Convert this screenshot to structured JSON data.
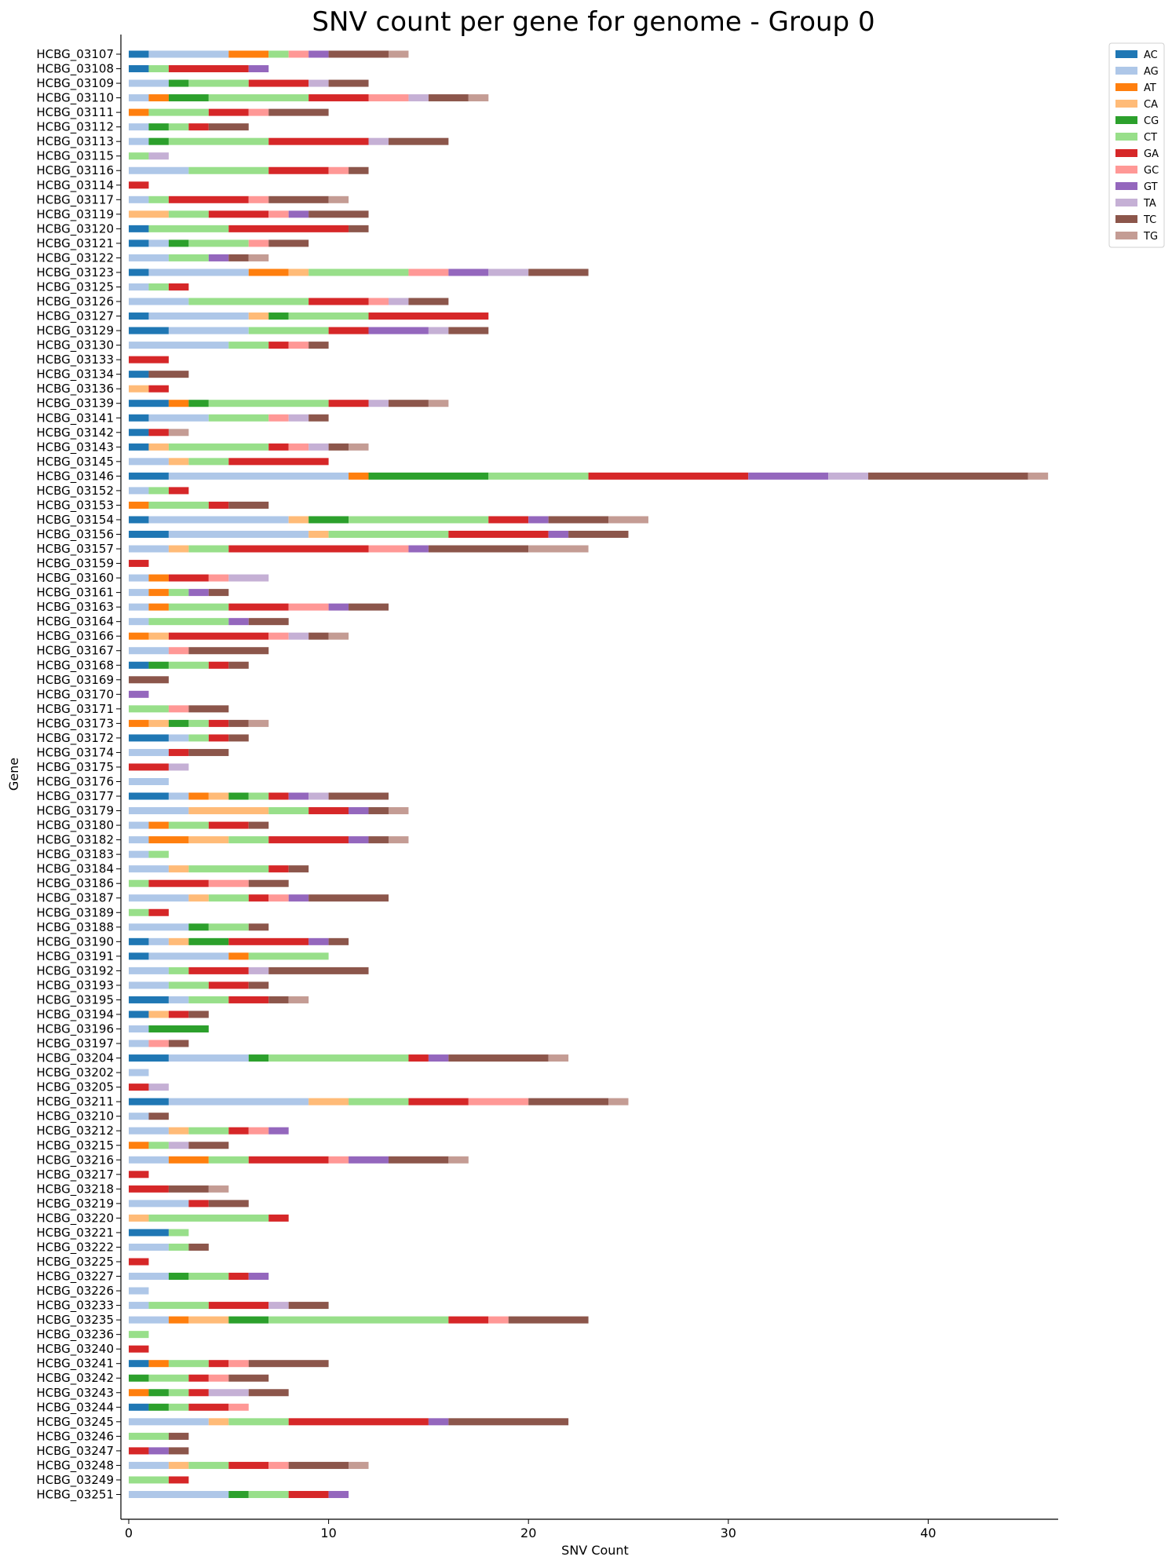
{
  "chart_data": {
    "type": "bar",
    "orientation": "horizontal",
    "stacked": true,
    "title": "SNV count per gene for genome - Group 0",
    "xlabel": "SNV Count",
    "ylabel": "Gene",
    "xlim": [
      0,
      46
    ],
    "xticks": [
      0,
      10,
      20,
      30,
      40
    ],
    "grid": false,
    "legend_position": "top-right",
    "series_names": [
      "AC",
      "AG",
      "AT",
      "CA",
      "CG",
      "CT",
      "GA",
      "GC",
      "GT",
      "TA",
      "TC",
      "TG"
    ],
    "colors": {
      "AC": "#1f77b4",
      "AG": "#aec7e8",
      "AT": "#ff7f0e",
      "CA": "#ffbb78",
      "CG": "#2ca02c",
      "CT": "#98df8a",
      "GA": "#d62728",
      "GC": "#ff9896",
      "GT": "#9467bd",
      "TA": "#c5b0d5",
      "TC": "#8c564b",
      "TG": "#c49c94"
    },
    "genes": [
      {
        "gene": "HCBG_03107",
        "counts": {
          "AC": 1,
          "AG": 4,
          "AT": 2,
          "CT": 1,
          "GC": 1,
          "GT": 1,
          "TC": 3,
          "TG": 1
        }
      },
      {
        "gene": "HCBG_03108",
        "counts": {
          "AC": 1,
          "CT": 1,
          "GA": 4,
          "GT": 1
        }
      },
      {
        "gene": "HCBG_03109",
        "counts": {
          "AG": 2,
          "CG": 1,
          "CT": 3,
          "GA": 3,
          "TA": 1,
          "TC": 2
        }
      },
      {
        "gene": "HCBG_03110",
        "counts": {
          "AG": 1,
          "AT": 1,
          "CG": 2,
          "CT": 5,
          "GA": 3,
          "GC": 2,
          "TA": 1,
          "TC": 2,
          "TG": 1
        }
      },
      {
        "gene": "HCBG_03111",
        "counts": {
          "AT": 1,
          "CT": 3,
          "GA": 2,
          "GC": 1,
          "TC": 3
        }
      },
      {
        "gene": "HCBG_03112",
        "counts": {
          "AG": 1,
          "CG": 1,
          "CT": 1,
          "GA": 1,
          "TC": 2
        }
      },
      {
        "gene": "HCBG_03113",
        "counts": {
          "AG": 1,
          "CG": 1,
          "CT": 5,
          "GA": 5,
          "TA": 1,
          "TC": 3
        }
      },
      {
        "gene": "HCBG_03115",
        "counts": {
          "CT": 1,
          "TA": 1
        }
      },
      {
        "gene": "HCBG_03116",
        "counts": {
          "AG": 3,
          "CT": 4,
          "GA": 3,
          "GC": 1,
          "TC": 1
        }
      },
      {
        "gene": "HCBG_03114",
        "counts": {
          "GA": 1
        }
      },
      {
        "gene": "HCBG_03117",
        "counts": {
          "AG": 1,
          "CT": 1,
          "GA": 4,
          "GC": 1,
          "TC": 3,
          "TG": 1
        }
      },
      {
        "gene": "HCBG_03119",
        "counts": {
          "CA": 2,
          "CT": 2,
          "GA": 3,
          "GC": 1,
          "GT": 1,
          "TC": 3
        }
      },
      {
        "gene": "HCBG_03120",
        "counts": {
          "AC": 1,
          "CT": 4,
          "GA": 6,
          "TC": 1
        }
      },
      {
        "gene": "HCBG_03121",
        "counts": {
          "AC": 1,
          "AG": 1,
          "CG": 1,
          "CT": 3,
          "GC": 1,
          "TC": 2
        }
      },
      {
        "gene": "HCBG_03122",
        "counts": {
          "AG": 2,
          "CT": 2,
          "GT": 1,
          "TC": 1,
          "TG": 1
        }
      },
      {
        "gene": "HCBG_03123",
        "counts": {
          "AC": 1,
          "AG": 5,
          "AT": 2,
          "CA": 1,
          "CT": 5,
          "GC": 2,
          "GT": 2,
          "TA": 2,
          "TC": 3
        }
      },
      {
        "gene": "HCBG_03125",
        "counts": {
          "AG": 1,
          "CT": 1,
          "GA": 1
        }
      },
      {
        "gene": "HCBG_03126",
        "counts": {
          "AG": 3,
          "CT": 6,
          "GA": 3,
          "GC": 1,
          "TA": 1,
          "TC": 2
        }
      },
      {
        "gene": "HCBG_03127",
        "counts": {
          "AC": 1,
          "AG": 5,
          "CA": 1,
          "CG": 1,
          "CT": 4,
          "GA": 6
        }
      },
      {
        "gene": "HCBG_03129",
        "counts": {
          "AC": 2,
          "AG": 4,
          "CT": 4,
          "GA": 2,
          "GT": 3,
          "TA": 1,
          "TC": 2
        }
      },
      {
        "gene": "HCBG_03130",
        "counts": {
          "AG": 5,
          "CT": 2,
          "GA": 1,
          "GC": 1,
          "TC": 1
        }
      },
      {
        "gene": "HCBG_03133",
        "counts": {
          "GA": 2
        }
      },
      {
        "gene": "HCBG_03134",
        "counts": {
          "AC": 1,
          "TC": 2
        }
      },
      {
        "gene": "HCBG_03136",
        "counts": {
          "CA": 1,
          "GA": 1
        }
      },
      {
        "gene": "HCBG_03139",
        "counts": {
          "AC": 2,
          "AT": 1,
          "CG": 1,
          "CT": 6,
          "GA": 2,
          "TA": 1,
          "TC": 2,
          "TG": 1
        }
      },
      {
        "gene": "HCBG_03141",
        "counts": {
          "AC": 1,
          "AG": 3,
          "CT": 3,
          "GC": 1,
          "TA": 1,
          "TC": 1
        }
      },
      {
        "gene": "HCBG_03142",
        "counts": {
          "AC": 1,
          "GA": 1,
          "TG": 1
        }
      },
      {
        "gene": "HCBG_03143",
        "counts": {
          "AC": 1,
          "CA": 1,
          "CT": 5,
          "GA": 1,
          "GC": 1,
          "TA": 1,
          "TC": 1,
          "TG": 1
        }
      },
      {
        "gene": "HCBG_03145",
        "counts": {
          "AG": 2,
          "CA": 1,
          "CT": 2,
          "GA": 5
        }
      },
      {
        "gene": "HCBG_03146",
        "counts": {
          "AC": 2,
          "AG": 9,
          "AT": 1,
          "CG": 6,
          "CT": 5,
          "GA": 8,
          "GT": 4,
          "TA": 2,
          "TC": 8,
          "TG": 1
        }
      },
      {
        "gene": "HCBG_03152",
        "counts": {
          "AG": 1,
          "CT": 1,
          "GA": 1
        }
      },
      {
        "gene": "HCBG_03153",
        "counts": {
          "AT": 1,
          "CT": 3,
          "GA": 1,
          "TC": 2
        }
      },
      {
        "gene": "HCBG_03154",
        "counts": {
          "AC": 1,
          "AG": 7,
          "CA": 1,
          "CG": 2,
          "CT": 7,
          "GA": 2,
          "GT": 1,
          "TC": 3,
          "TG": 2
        }
      },
      {
        "gene": "HCBG_03156",
        "counts": {
          "AC": 2,
          "AG": 7,
          "CA": 1,
          "CT": 6,
          "GA": 5,
          "GT": 1,
          "TC": 3
        }
      },
      {
        "gene": "HCBG_03157",
        "counts": {
          "AG": 2,
          "CA": 1,
          "CT": 2,
          "GA": 7,
          "GC": 2,
          "GT": 1,
          "TC": 5,
          "TG": 3
        }
      },
      {
        "gene": "HCBG_03159",
        "counts": {
          "GA": 1
        }
      },
      {
        "gene": "HCBG_03160",
        "counts": {
          "AG": 1,
          "AT": 1,
          "GA": 2,
          "GC": 1,
          "TA": 2
        }
      },
      {
        "gene": "HCBG_03161",
        "counts": {
          "AG": 1,
          "AT": 1,
          "CT": 1,
          "GT": 1,
          "TC": 1
        }
      },
      {
        "gene": "HCBG_03163",
        "counts": {
          "AG": 1,
          "AT": 1,
          "CT": 3,
          "GA": 3,
          "GC": 2,
          "GT": 1,
          "TC": 2
        }
      },
      {
        "gene": "HCBG_03164",
        "counts": {
          "AG": 1,
          "CT": 4,
          "GT": 1,
          "TC": 2
        }
      },
      {
        "gene": "HCBG_03166",
        "counts": {
          "AT": 1,
          "CA": 1,
          "GA": 5,
          "GC": 1,
          "TA": 1,
          "TC": 1,
          "TG": 1
        }
      },
      {
        "gene": "HCBG_03167",
        "counts": {
          "AG": 2,
          "GC": 1,
          "TC": 4
        }
      },
      {
        "gene": "HCBG_03168",
        "counts": {
          "AC": 1,
          "CG": 1,
          "CT": 2,
          "GA": 1,
          "TC": 1
        }
      },
      {
        "gene": "HCBG_03169",
        "counts": {
          "TC": 2
        }
      },
      {
        "gene": "HCBG_03170",
        "counts": {
          "GT": 1
        }
      },
      {
        "gene": "HCBG_03171",
        "counts": {
          "CT": 2,
          "GC": 1,
          "TC": 2
        }
      },
      {
        "gene": "HCBG_03173",
        "counts": {
          "AT": 1,
          "CA": 1,
          "CG": 1,
          "CT": 1,
          "GA": 1,
          "TC": 1,
          "TG": 1
        }
      },
      {
        "gene": "HCBG_03172",
        "counts": {
          "AC": 2,
          "AG": 1,
          "CT": 1,
          "GA": 1,
          "TC": 1
        }
      },
      {
        "gene": "HCBG_03174",
        "counts": {
          "AG": 2,
          "GA": 1,
          "TC": 2
        }
      },
      {
        "gene": "HCBG_03175",
        "counts": {
          "GA": 2,
          "TA": 1
        }
      },
      {
        "gene": "HCBG_03176",
        "counts": {
          "AG": 2
        }
      },
      {
        "gene": "HCBG_03177",
        "counts": {
          "AC": 2,
          "AG": 1,
          "AT": 1,
          "CA": 1,
          "CG": 1,
          "CT": 1,
          "GA": 1,
          "GT": 1,
          "TA": 1,
          "TC": 3
        }
      },
      {
        "gene": "HCBG_03179",
        "counts": {
          "AG": 3,
          "CA": 4,
          "CT": 2,
          "GA": 2,
          "GT": 1,
          "TC": 1,
          "TG": 1
        }
      },
      {
        "gene": "HCBG_03180",
        "counts": {
          "AG": 1,
          "AT": 1,
          "CT": 2,
          "GA": 2,
          "TC": 1
        }
      },
      {
        "gene": "HCBG_03182",
        "counts": {
          "AG": 1,
          "AT": 2,
          "CA": 2,
          "CT": 2,
          "GA": 4,
          "GT": 1,
          "TC": 1,
          "TG": 1
        }
      },
      {
        "gene": "HCBG_03183",
        "counts": {
          "AG": 1,
          "CT": 1
        }
      },
      {
        "gene": "HCBG_03184",
        "counts": {
          "AG": 2,
          "CA": 1,
          "CT": 4,
          "GA": 1,
          "TC": 1
        }
      },
      {
        "gene": "HCBG_03186",
        "counts": {
          "CT": 1,
          "GA": 3,
          "GC": 2,
          "TC": 2
        }
      },
      {
        "gene": "HCBG_03187",
        "counts": {
          "AG": 3,
          "CA": 1,
          "CT": 2,
          "GA": 1,
          "GC": 1,
          "GT": 1,
          "TC": 4
        }
      },
      {
        "gene": "HCBG_03189",
        "counts": {
          "CT": 1,
          "GA": 1
        }
      },
      {
        "gene": "HCBG_03188",
        "counts": {
          "AG": 3,
          "CG": 1,
          "CT": 2,
          "TC": 1
        }
      },
      {
        "gene": "HCBG_03190",
        "counts": {
          "AC": 1,
          "AG": 1,
          "CA": 1,
          "CG": 2,
          "GA": 4,
          "GT": 1,
          "TC": 1
        }
      },
      {
        "gene": "HCBG_03191",
        "counts": {
          "AC": 1,
          "AG": 4,
          "AT": 1,
          "CT": 4
        }
      },
      {
        "gene": "HCBG_03192",
        "counts": {
          "AG": 2,
          "CT": 1,
          "GA": 3,
          "TA": 1,
          "TC": 5
        }
      },
      {
        "gene": "HCBG_03193",
        "counts": {
          "AG": 2,
          "CT": 2,
          "GA": 2,
          "TC": 1
        }
      },
      {
        "gene": "HCBG_03195",
        "counts": {
          "AC": 2,
          "AG": 1,
          "CT": 2,
          "GA": 2,
          "TC": 1,
          "TG": 1
        }
      },
      {
        "gene": "HCBG_03194",
        "counts": {
          "AC": 1,
          "CA": 1,
          "GA": 1,
          "TC": 1
        }
      },
      {
        "gene": "HCBG_03196",
        "counts": {
          "AG": 1,
          "CG": 3
        }
      },
      {
        "gene": "HCBG_03197",
        "counts": {
          "AG": 1,
          "GC": 1,
          "TC": 1
        }
      },
      {
        "gene": "HCBG_03204",
        "counts": {
          "AC": 2,
          "AG": 4,
          "CG": 1,
          "CT": 7,
          "GA": 1,
          "GT": 1,
          "TC": 5,
          "TG": 1
        }
      },
      {
        "gene": "HCBG_03202",
        "counts": {
          "AG": 1
        }
      },
      {
        "gene": "HCBG_03205",
        "counts": {
          "GA": 1,
          "TA": 1
        }
      },
      {
        "gene": "HCBG_03211",
        "counts": {
          "AC": 2,
          "AG": 7,
          "CA": 2,
          "CT": 3,
          "GA": 3,
          "GC": 3,
          "TC": 4,
          "TG": 1
        }
      },
      {
        "gene": "HCBG_03210",
        "counts": {
          "AG": 1,
          "TC": 1
        }
      },
      {
        "gene": "HCBG_03212",
        "counts": {
          "AG": 2,
          "CA": 1,
          "CT": 2,
          "GA": 1,
          "GC": 1,
          "GT": 1
        }
      },
      {
        "gene": "HCBG_03215",
        "counts": {
          "AT": 1,
          "CT": 1,
          "TA": 1,
          "TC": 2
        }
      },
      {
        "gene": "HCBG_03216",
        "counts": {
          "AG": 2,
          "AT": 2,
          "CT": 2,
          "GA": 4,
          "GC": 1,
          "GT": 2,
          "TC": 3,
          "TG": 1
        }
      },
      {
        "gene": "HCBG_03217",
        "counts": {
          "GA": 1
        }
      },
      {
        "gene": "HCBG_03218",
        "counts": {
          "GA": 2,
          "TC": 2,
          "TG": 1
        }
      },
      {
        "gene": "HCBG_03219",
        "counts": {
          "AG": 3,
          "GA": 1,
          "TC": 2
        }
      },
      {
        "gene": "HCBG_03220",
        "counts": {
          "CA": 1,
          "CT": 6,
          "GA": 1
        }
      },
      {
        "gene": "HCBG_03221",
        "counts": {
          "AC": 2,
          "CT": 1
        }
      },
      {
        "gene": "HCBG_03222",
        "counts": {
          "AG": 2,
          "CT": 1,
          "TC": 1
        }
      },
      {
        "gene": "HCBG_03225",
        "counts": {
          "GA": 1
        }
      },
      {
        "gene": "HCBG_03227",
        "counts": {
          "AG": 2,
          "CG": 1,
          "CT": 2,
          "GA": 1,
          "GT": 1
        }
      },
      {
        "gene": "HCBG_03226",
        "counts": {
          "AG": 1
        }
      },
      {
        "gene": "HCBG_03233",
        "counts": {
          "AG": 1,
          "CT": 3,
          "GA": 3,
          "TA": 1,
          "TC": 2
        }
      },
      {
        "gene": "HCBG_03235",
        "counts": {
          "AG": 2,
          "AT": 1,
          "CA": 2,
          "CG": 2,
          "CT": 9,
          "GA": 2,
          "GC": 1,
          "TC": 4
        }
      },
      {
        "gene": "HCBG_03236",
        "counts": {
          "CT": 1
        }
      },
      {
        "gene": "HCBG_03240",
        "counts": {
          "GA": 1
        }
      },
      {
        "gene": "HCBG_03241",
        "counts": {
          "AC": 1,
          "AT": 1,
          "CT": 2,
          "GA": 1,
          "GC": 1,
          "TC": 4
        }
      },
      {
        "gene": "HCBG_03242",
        "counts": {
          "CG": 1,
          "CT": 2,
          "GA": 1,
          "GC": 1,
          "TC": 2
        }
      },
      {
        "gene": "HCBG_03243",
        "counts": {
          "AT": 1,
          "CG": 1,
          "CT": 1,
          "GA": 1,
          "TA": 2,
          "TC": 2
        }
      },
      {
        "gene": "HCBG_03244",
        "counts": {
          "AC": 1,
          "CG": 1,
          "CT": 1,
          "GA": 2,
          "GC": 1
        }
      },
      {
        "gene": "HCBG_03245",
        "counts": {
          "AG": 4,
          "CA": 1,
          "CT": 3,
          "GA": 7,
          "GT": 1,
          "TC": 6
        }
      },
      {
        "gene": "HCBG_03246",
        "counts": {
          "CT": 2,
          "TC": 1
        }
      },
      {
        "gene": "HCBG_03247",
        "counts": {
          "GA": 1,
          "GT": 1,
          "TC": 1
        }
      },
      {
        "gene": "HCBG_03248",
        "counts": {
          "AG": 2,
          "CA": 1,
          "CT": 2,
          "GA": 2,
          "GC": 1,
          "TC": 3,
          "TG": 1
        }
      },
      {
        "gene": "HCBG_03249",
        "counts": {
          "CT": 2,
          "GA": 1
        }
      },
      {
        "gene": "HCBG_03251",
        "counts": {
          "AG": 5,
          "CG": 1,
          "CT": 2,
          "GA": 2,
          "GT": 1
        }
      }
    ]
  }
}
